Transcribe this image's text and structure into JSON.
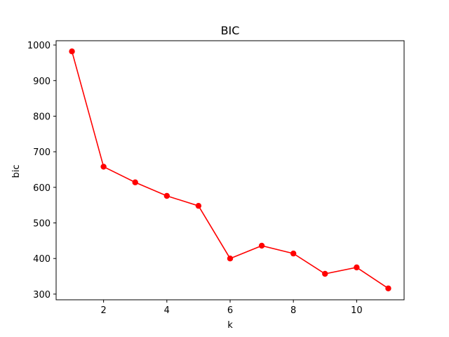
{
  "chart_data": {
    "type": "line",
    "title": "BIC",
    "xlabel": "k",
    "ylabel": "bic",
    "x": [
      1,
      2,
      3,
      4,
      5,
      6,
      7,
      8,
      9,
      10,
      11
    ],
    "series": [
      {
        "values": [
          982,
          658,
          614,
          576,
          548,
          400,
          436,
          414,
          357,
          375,
          316
        ],
        "color": "#ff0000",
        "marker": "circle"
      }
    ],
    "xlim": [
      0.5,
      11.5
    ],
    "ylim": [
      284,
      1012
    ],
    "xticks": [
      2,
      4,
      6,
      8,
      10
    ],
    "yticks": [
      300,
      400,
      500,
      600,
      700,
      800,
      900,
      1000
    ],
    "grid": false,
    "legend": "none"
  }
}
